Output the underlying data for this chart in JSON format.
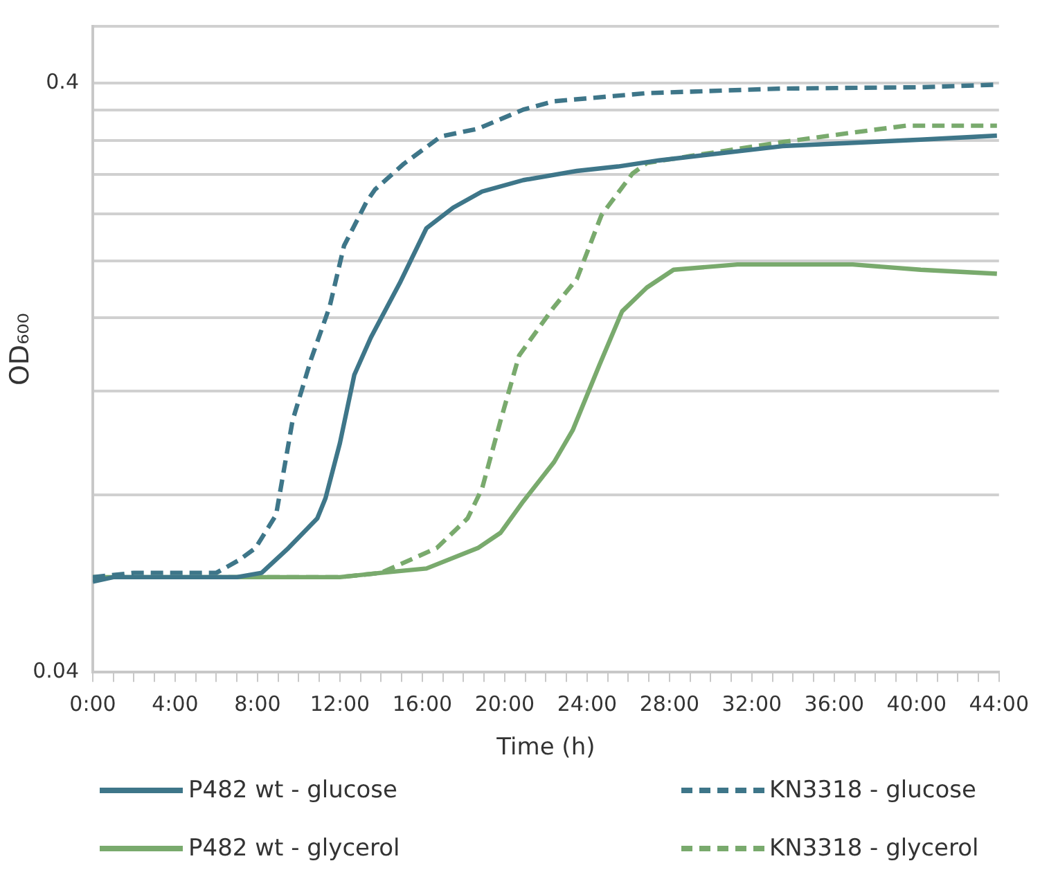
{
  "chart_data": {
    "type": "line",
    "xlabel": "Time (h)",
    "ylabel": "OD₆₀₀",
    "log": "y",
    "grid": "y",
    "legend": "bottom",
    "marker": "none",
    "xlim": [
      0,
      44
    ],
    "xticks": [
      {
        "value": 0,
        "label": "0:00"
      },
      {
        "value": 1,
        "label": null
      },
      {
        "value": 2,
        "label": null
      },
      {
        "value": 3,
        "label": null
      },
      {
        "value": 4,
        "label": "4:00"
      },
      {
        "value": 5,
        "label": null
      },
      {
        "value": 6,
        "label": null
      },
      {
        "value": 7,
        "label": null
      },
      {
        "value": 8,
        "label": "8:00"
      },
      {
        "value": 9,
        "label": null
      },
      {
        "value": 10,
        "label": null
      },
      {
        "value": 11,
        "label": null
      },
      {
        "value": 12,
        "label": "12:00"
      },
      {
        "value": 13,
        "label": null
      },
      {
        "value": 14,
        "label": null
      },
      {
        "value": 15,
        "label": null
      },
      {
        "value": 16,
        "label": "16:00"
      },
      {
        "value": 17,
        "label": null
      },
      {
        "value": 18,
        "label": null
      },
      {
        "value": 19,
        "label": null
      },
      {
        "value": 20,
        "label": "20:00"
      },
      {
        "value": 21,
        "label": null
      },
      {
        "value": 22,
        "label": null
      },
      {
        "value": 23,
        "label": null
      },
      {
        "value": 24,
        "label": "24:00"
      },
      {
        "value": 25,
        "label": null
      },
      {
        "value": 26,
        "label": null
      },
      {
        "value": 27,
        "label": null
      },
      {
        "value": 28,
        "label": "28:00"
      },
      {
        "value": 29,
        "label": null
      },
      {
        "value": 30,
        "label": null
      },
      {
        "value": 31,
        "label": null
      },
      {
        "value": 32,
        "label": "32:00"
      },
      {
        "value": 33,
        "label": null
      },
      {
        "value": 34,
        "label": null
      },
      {
        "value": 35,
        "label": null
      },
      {
        "value": 36,
        "label": "36:00"
      },
      {
        "value": 37,
        "label": null
      },
      {
        "value": 38,
        "label": null
      },
      {
        "value": 39,
        "label": null
      },
      {
        "value": 40,
        "label": "40:00"
      },
      {
        "value": 41,
        "label": null
      },
      {
        "value": 42,
        "label": null
      },
      {
        "value": 43,
        "label": null
      },
      {
        "value": 44,
        "label": "44:00"
      }
    ],
    "ylim": [
      0.04,
      0.5
    ],
    "yticks": [
      0.04,
      {
        "value": 0.08,
        "label": null
      },
      {
        "value": 0.12,
        "label": null
      },
      {
        "value": 0.16,
        "label": null
      },
      {
        "value": 0.2,
        "label": null
      },
      {
        "value": 0.24,
        "label": null
      },
      {
        "value": 0.28,
        "label": null
      },
      {
        "value": 0.32,
        "label": null
      },
      {
        "value": 0.36,
        "label": null
      },
      0.4,
      {
        "value": 0.5,
        "label": null
      }
    ],
    "series": [
      {
        "name": "P482 wt - glucose",
        "color": "#3e7689",
        "line_style": "solid",
        "x": [
          0,
          1,
          2,
          3,
          4,
          5,
          6,
          7,
          8.2,
          9.5,
          10.9,
          11.3,
          12,
          12.7,
          13.5,
          14.9,
          16.2,
          17.5,
          18.9,
          20.9,
          23.5,
          25.5,
          27.5,
          33.5,
          40.2,
          43.9
        ],
        "values": [
          0.057,
          0.058,
          0.058,
          0.058,
          0.058,
          0.058,
          0.058,
          0.058,
          0.059,
          0.065,
          0.073,
          0.079,
          0.098,
          0.128,
          0.148,
          0.183,
          0.227,
          0.246,
          0.262,
          0.274,
          0.284,
          0.289,
          0.296,
          0.313,
          0.321,
          0.326
        ]
      },
      {
        "name": "KN3318 - glucose",
        "color": "#3e7689",
        "line_style": "dashed",
        "x": [
          0,
          2,
          4,
          6,
          7.1,
          7.9,
          8.9,
          9.7,
          10.6,
          11.5,
          12.2,
          13.3,
          13.7,
          15.1,
          16.9,
          18.7,
          20.9,
          22.4,
          26.9,
          33.5,
          40.2,
          43.9
        ],
        "values": [
          0.058,
          0.059,
          0.059,
          0.059,
          0.062,
          0.065,
          0.074,
          0.107,
          0.136,
          0.167,
          0.212,
          0.252,
          0.264,
          0.292,
          0.325,
          0.335,
          0.361,
          0.373,
          0.385,
          0.392,
          0.394,
          0.398
        ]
      },
      {
        "name": "P482 wt - glycerol",
        "color": "#79aa6d",
        "line_style": "solid",
        "x": [
          0,
          2,
          4,
          6,
          8,
          10,
          12,
          14,
          16.2,
          18.7,
          19.8,
          20.9,
          22.4,
          23.3,
          24.6,
          25.7,
          26.9,
          28.2,
          31.3,
          36.9,
          40.2,
          43.9
        ],
        "values": [
          0.058,
          0.058,
          0.058,
          0.058,
          0.058,
          0.058,
          0.058,
          0.059,
          0.06,
          0.065,
          0.069,
          0.078,
          0.091,
          0.103,
          0.133,
          0.164,
          0.18,
          0.193,
          0.197,
          0.197,
          0.193,
          0.19
        ]
      },
      {
        "name": "KN3318 - glycerol",
        "color": "#79aa6d",
        "line_style": "dashed",
        "x": [
          0,
          2,
          4,
          6,
          8,
          10,
          12,
          14,
          16.7,
          18.2,
          18.9,
          19.8,
          20.7,
          22.4,
          23.5,
          24.7,
          26.2,
          26.9,
          29,
          33.5,
          36.9,
          39.5,
          43.9
        ],
        "values": [
          0.058,
          0.058,
          0.058,
          0.058,
          0.058,
          0.058,
          0.058,
          0.059,
          0.065,
          0.073,
          0.082,
          0.107,
          0.138,
          0.167,
          0.186,
          0.239,
          0.281,
          0.293,
          0.301,
          0.318,
          0.33,
          0.339,
          0.339
        ]
      }
    ]
  }
}
